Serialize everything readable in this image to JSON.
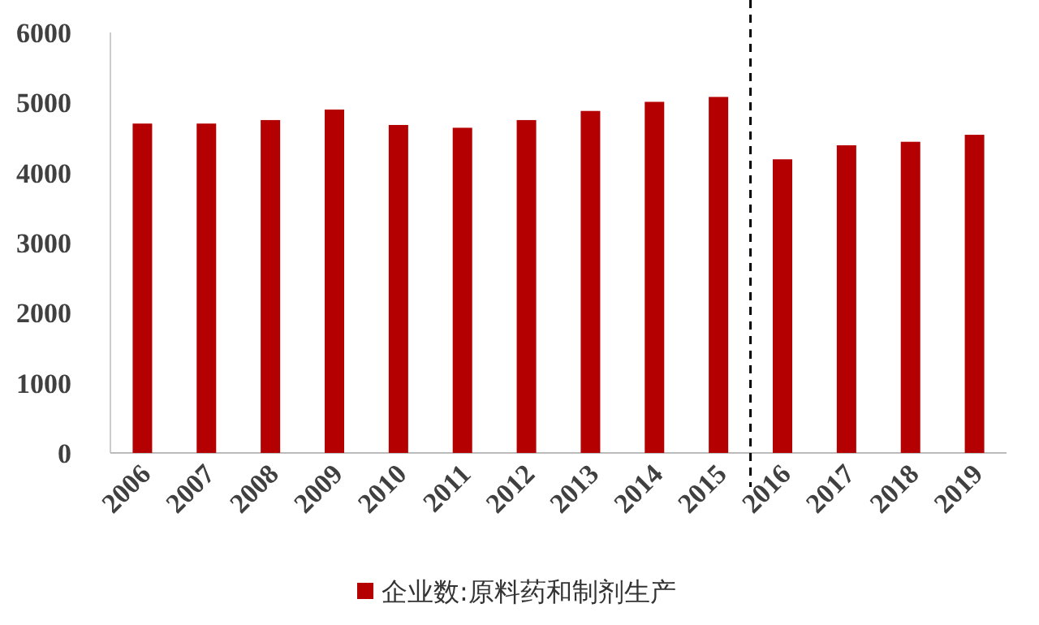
{
  "chart_data": {
    "type": "bar",
    "categories": [
      "2006",
      "2007",
      "2008",
      "2009",
      "2010",
      "2011",
      "2012",
      "2013",
      "2014",
      "2015",
      "2016",
      "2017",
      "2018",
      "2019"
    ],
    "series": [
      {
        "name": "企业数:原料药和制剂生产",
        "color": "#b40000",
        "values": [
          4700,
          4700,
          4750,
          4900,
          4680,
          4640,
          4750,
          4880,
          5010,
          5080,
          4190,
          4390,
          4440,
          4540
        ]
      }
    ],
    "ylim": [
      0,
      6000
    ],
    "yticks": [
      0,
      1000,
      2000,
      3000,
      4000,
      5000,
      6000
    ],
    "grid": false,
    "legend": "bottom"
  }
}
